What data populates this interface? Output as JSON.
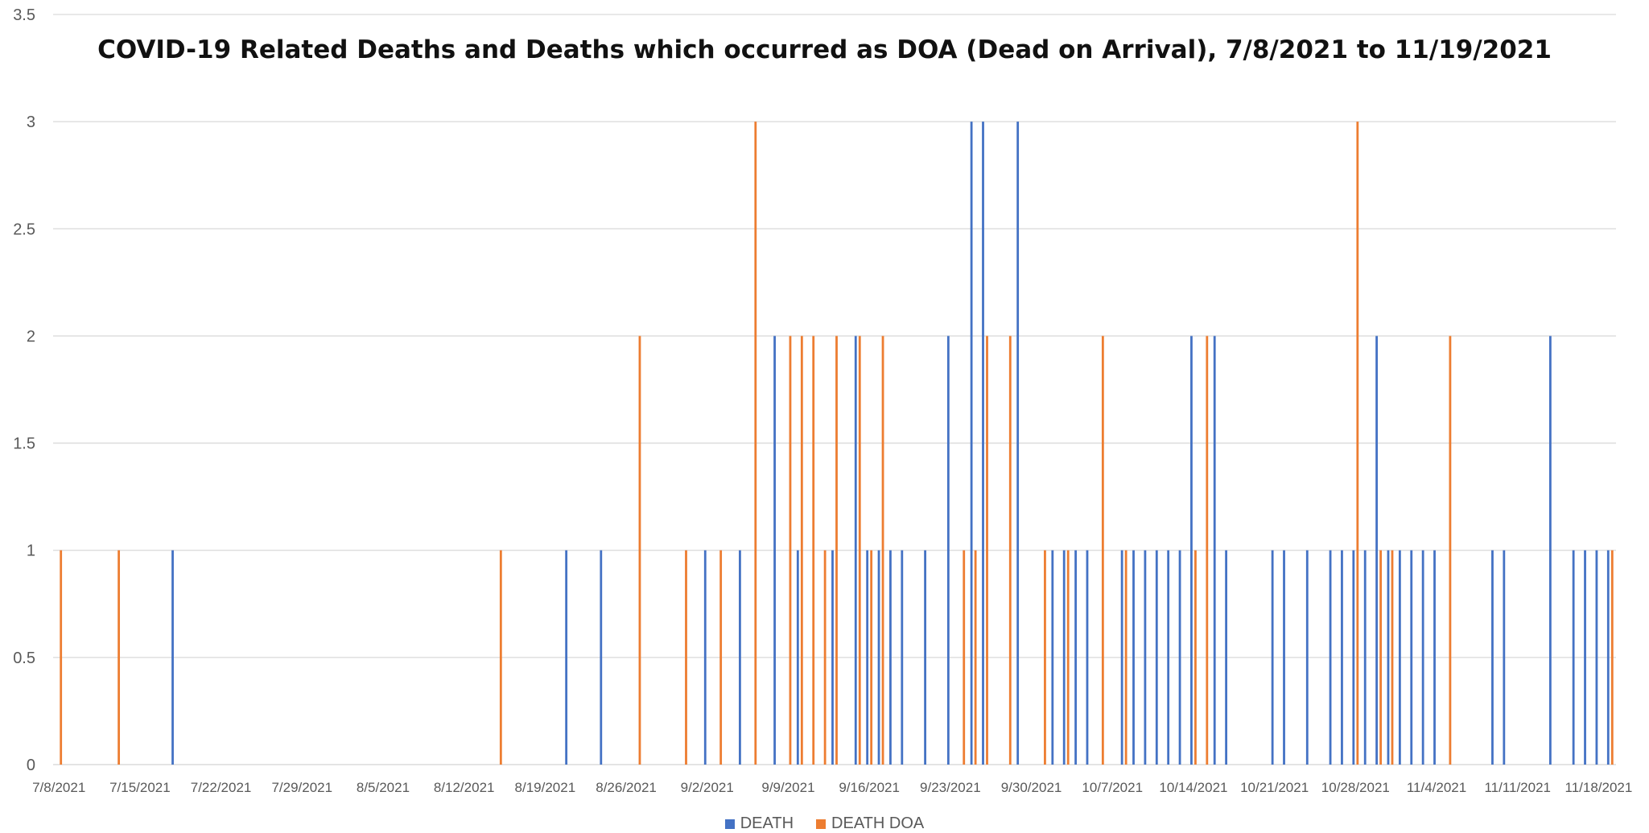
{
  "chart_data": {
    "type": "bar",
    "title": "COVID-19 Related Deaths and Deaths which occurred as DOA (Dead on Arrival), 7/8/2021 to 11/19/2021",
    "xlabel": "",
    "ylabel": "",
    "ylim": [
      0,
      3.5
    ],
    "y_ticks": [
      "0",
      "0.5",
      "1",
      "1.5",
      "2",
      "2.5",
      "3",
      "3.5"
    ],
    "x_range": [
      "7/8/2021",
      "11/19/2021"
    ],
    "x_tick_labels": [
      "7/8/2021",
      "7/15/2021",
      "7/22/2021",
      "7/29/2021",
      "8/5/2021",
      "8/12/2021",
      "8/19/2021",
      "8/26/2021",
      "9/2/2021",
      "9/9/2021",
      "9/16/2021",
      "9/23/2021",
      "9/30/2021",
      "10/7/2021",
      "10/14/2021",
      "10/21/2021",
      "10/28/2021",
      "11/4/2021",
      "11/11/2021",
      "11/18/2021"
    ],
    "grid": true,
    "legend_position": "bottom",
    "series": [
      {
        "name": "DEATH",
        "color": "#4472C4",
        "points": [
          {
            "x": "7/18/2021",
            "y": 1
          },
          {
            "x": "8/21/2021",
            "y": 1
          },
          {
            "x": "8/24/2021",
            "y": 1
          },
          {
            "x": "9/2/2021",
            "y": 1
          },
          {
            "x": "9/5/2021",
            "y": 1
          },
          {
            "x": "9/8/2021",
            "y": 2
          },
          {
            "x": "9/10/2021",
            "y": 1
          },
          {
            "x": "9/13/2021",
            "y": 1
          },
          {
            "x": "9/15/2021",
            "y": 2
          },
          {
            "x": "9/16/2021",
            "y": 1
          },
          {
            "x": "9/17/2021",
            "y": 1
          },
          {
            "x": "9/18/2021",
            "y": 1
          },
          {
            "x": "9/19/2021",
            "y": 1
          },
          {
            "x": "9/21/2021",
            "y": 1
          },
          {
            "x": "9/23/2021",
            "y": 2
          },
          {
            "x": "9/25/2021",
            "y": 3
          },
          {
            "x": "9/26/2021",
            "y": 3
          },
          {
            "x": "9/29/2021",
            "y": 3
          },
          {
            "x": "10/2/2021",
            "y": 1
          },
          {
            "x": "10/3/2021",
            "y": 1
          },
          {
            "x": "10/4/2021",
            "y": 1
          },
          {
            "x": "10/5/2021",
            "y": 1
          },
          {
            "x": "10/8/2021",
            "y": 1
          },
          {
            "x": "10/9/2021",
            "y": 1
          },
          {
            "x": "10/10/2021",
            "y": 1
          },
          {
            "x": "10/11/2021",
            "y": 1
          },
          {
            "x": "10/12/2021",
            "y": 1
          },
          {
            "x": "10/13/2021",
            "y": 1
          },
          {
            "x": "10/14/2021",
            "y": 2
          },
          {
            "x": "10/16/2021",
            "y": 2
          },
          {
            "x": "10/17/2021",
            "y": 1
          },
          {
            "x": "10/21/2021",
            "y": 1
          },
          {
            "x": "10/22/2021",
            "y": 1
          },
          {
            "x": "10/24/2021",
            "y": 1
          },
          {
            "x": "10/26/2021",
            "y": 1
          },
          {
            "x": "10/27/2021",
            "y": 1
          },
          {
            "x": "10/28/2021",
            "y": 1
          },
          {
            "x": "10/29/2021",
            "y": 1
          },
          {
            "x": "10/30/2021",
            "y": 2
          },
          {
            "x": "10/31/2021",
            "y": 1
          },
          {
            "x": "11/1/2021",
            "y": 1
          },
          {
            "x": "11/2/2021",
            "y": 1
          },
          {
            "x": "11/3/2021",
            "y": 1
          },
          {
            "x": "11/4/2021",
            "y": 1
          },
          {
            "x": "11/9/2021",
            "y": 1
          },
          {
            "x": "11/10/2021",
            "y": 1
          },
          {
            "x": "11/14/2021",
            "y": 2
          },
          {
            "x": "11/16/2021",
            "y": 1
          },
          {
            "x": "11/17/2021",
            "y": 1
          },
          {
            "x": "11/18/2021",
            "y": 1
          },
          {
            "x": "11/19/2021",
            "y": 1
          }
        ]
      },
      {
        "name": "DEATH DOA",
        "color": "#ED7D31",
        "points": [
          {
            "x": "7/8/2021",
            "y": 1
          },
          {
            "x": "7/13/2021",
            "y": 1
          },
          {
            "x": "8/15/2021",
            "y": 1
          },
          {
            "x": "8/27/2021",
            "y": 2
          },
          {
            "x": "8/31/2021",
            "y": 1
          },
          {
            "x": "9/3/2021",
            "y": 1
          },
          {
            "x": "9/6/2021",
            "y": 3
          },
          {
            "x": "9/9/2021",
            "y": 2
          },
          {
            "x": "9/10/2021",
            "y": 2
          },
          {
            "x": "9/11/2021",
            "y": 2
          },
          {
            "x": "9/12/2021",
            "y": 1
          },
          {
            "x": "9/13/2021",
            "y": 2
          },
          {
            "x": "9/15/2021",
            "y": 2
          },
          {
            "x": "9/16/2021",
            "y": 1
          },
          {
            "x": "9/17/2021",
            "y": 2
          },
          {
            "x": "9/24/2021",
            "y": 1
          },
          {
            "x": "9/25/2021",
            "y": 1
          },
          {
            "x": "9/26/2021",
            "y": 2
          },
          {
            "x": "9/28/2021",
            "y": 2
          },
          {
            "x": "10/1/2021",
            "y": 1
          },
          {
            "x": "10/3/2021",
            "y": 1
          },
          {
            "x": "10/6/2021",
            "y": 2
          },
          {
            "x": "10/8/2021",
            "y": 1
          },
          {
            "x": "10/14/2021",
            "y": 1
          },
          {
            "x": "10/15/2021",
            "y": 2
          },
          {
            "x": "10/28/2021",
            "y": 3
          },
          {
            "x": "10/30/2021",
            "y": 1
          },
          {
            "x": "10/31/2021",
            "y": 1
          },
          {
            "x": "11/5/2021",
            "y": 2
          },
          {
            "x": "11/19/2021",
            "y": 1
          }
        ]
      }
    ]
  }
}
